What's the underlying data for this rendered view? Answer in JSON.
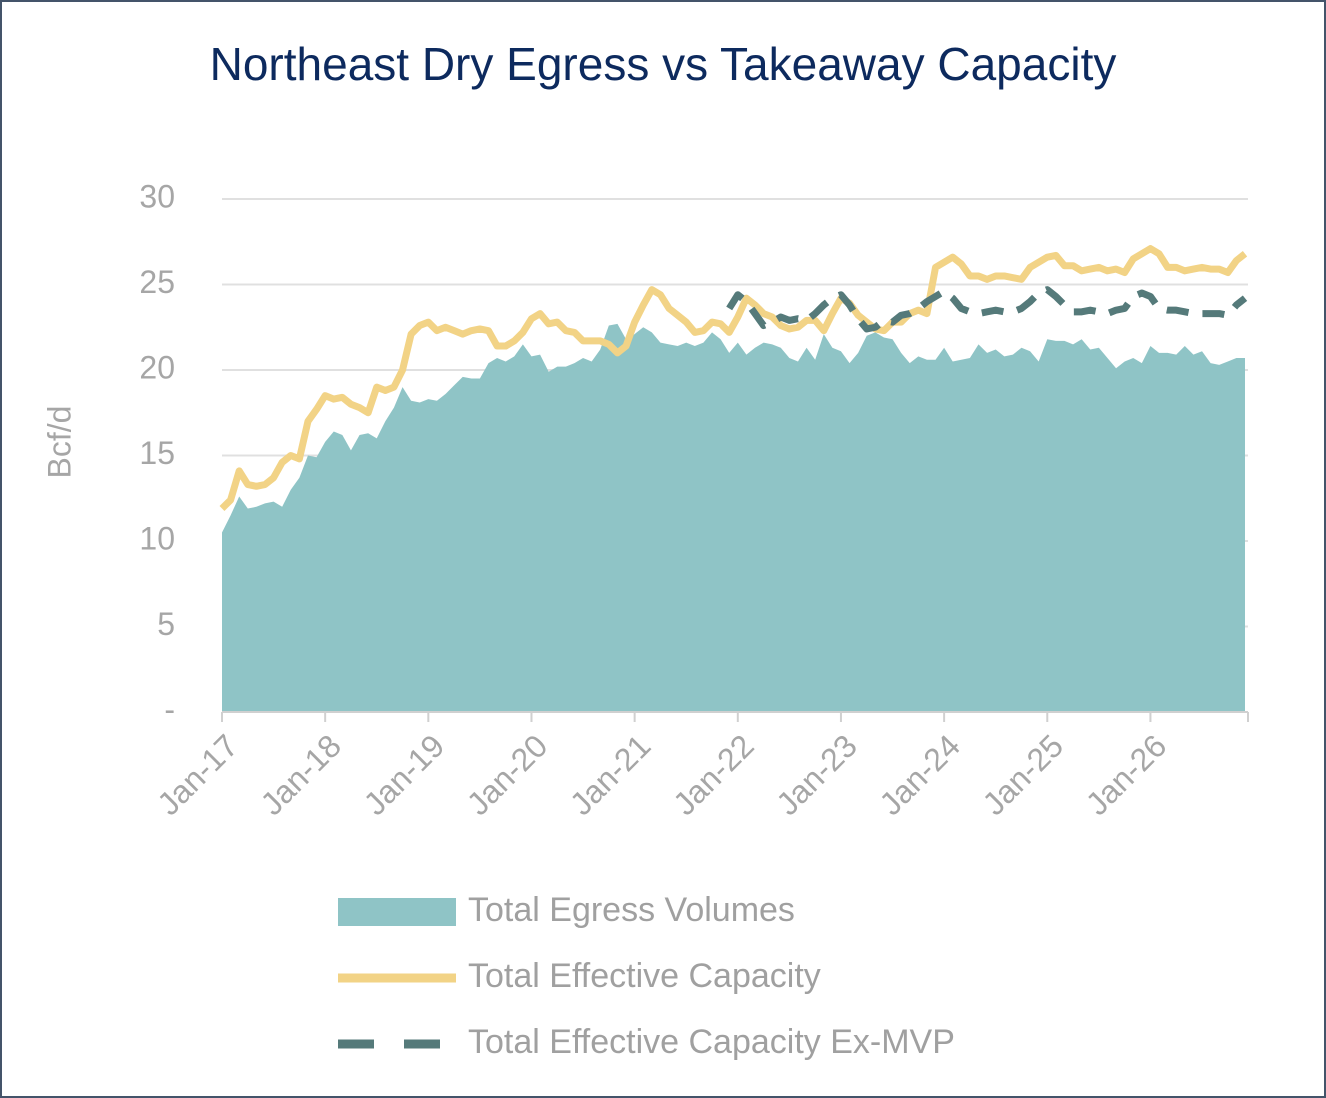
{
  "chart_data": {
    "type": "area-line",
    "title": "Northeast Dry Egress vs Takeaway Capacity",
    "y_label": "Bcf/d",
    "categories": [
      "Jan-17",
      null,
      null,
      null,
      null,
      null,
      null,
      null,
      null,
      null,
      null,
      null,
      "Jan-18",
      null,
      null,
      null,
      null,
      null,
      null,
      null,
      null,
      null,
      null,
      null,
      "Jan-19",
      null,
      null,
      null,
      null,
      null,
      null,
      null,
      null,
      null,
      null,
      null,
      "Jan-20",
      null,
      null,
      null,
      null,
      null,
      null,
      null,
      null,
      null,
      null,
      null,
      "Jan-21",
      null,
      null,
      null,
      null,
      null,
      null,
      null,
      null,
      null,
      null,
      null,
      "Jan-22",
      null,
      null,
      null,
      null,
      null,
      null,
      null,
      null,
      null,
      null,
      null,
      "Jan-23",
      null,
      null,
      null,
      null,
      null,
      null,
      null,
      null,
      null,
      null,
      null,
      "Jan-24",
      null,
      null,
      null,
      null,
      null,
      null,
      null,
      null,
      null,
      null,
      null,
      "Jan-25",
      null,
      null,
      null,
      null,
      null,
      null,
      null,
      null,
      null,
      null,
      null,
      "Jan-26",
      null,
      null,
      null,
      null,
      null,
      null,
      null,
      null,
      null,
      null,
      null
    ],
    "series": [
      {
        "name": "Total Egress Volumes",
        "color": "#8fc4c6",
        "style": "area",
        "values": [
          10.5,
          11.5,
          12.6,
          11.9,
          12.0,
          12.2,
          12.3,
          12.0,
          13.0,
          13.7,
          15.0,
          14.9,
          15.8,
          16.4,
          16.2,
          15.3,
          16.2,
          16.3,
          16.0,
          17.0,
          17.8,
          19.0,
          18.2,
          18.1,
          18.3,
          18.2,
          18.6,
          19.1,
          19.6,
          19.5,
          19.5,
          20.4,
          20.7,
          20.5,
          20.8,
          21.5,
          20.8,
          20.9,
          19.9,
          20.2,
          20.2,
          20.4,
          20.7,
          20.5,
          21.2,
          22.6,
          22.7,
          21.8,
          22.1,
          22.5,
          22.2,
          21.6,
          21.5,
          21.4,
          21.6,
          21.4,
          21.6,
          22.2,
          21.8,
          21.0,
          21.6,
          20.9,
          21.3,
          21.6,
          21.5,
          21.3,
          20.7,
          20.5,
          21.3,
          20.6,
          22.1,
          21.3,
          21.1,
          20.4,
          21.0,
          22.0,
          22.2,
          21.9,
          21.8,
          21.0,
          20.4,
          20.8,
          20.6,
          20.6,
          21.3,
          20.5,
          20.6,
          20.7,
          21.5,
          21.0,
          21.2,
          20.8,
          20.9,
          21.3,
          21.1,
          20.5,
          21.8,
          21.7,
          21.7,
          21.5,
          21.8,
          21.2,
          21.3,
          20.7,
          20.1,
          20.5,
          20.7,
          20.4,
          21.4,
          21.0,
          21.0,
          20.9,
          21.4,
          20.9,
          21.1,
          20.4,
          20.3,
          20.5,
          20.7,
          20.7
        ]
      },
      {
        "name": "Total Effective Capacity",
        "color": "#f2d386",
        "style": "solid",
        "values": [
          11.9,
          12.4,
          14.1,
          13.3,
          13.2,
          13.3,
          13.7,
          14.6,
          15.0,
          14.8,
          17.0,
          17.7,
          18.5,
          18.3,
          18.4,
          18.0,
          17.8,
          17.5,
          19.0,
          18.8,
          19.0,
          20.0,
          22.1,
          22.6,
          22.8,
          22.3,
          22.5,
          22.3,
          22.1,
          22.3,
          22.4,
          22.3,
          21.4,
          21.4,
          21.7,
          22.2,
          23.0,
          23.3,
          22.7,
          22.8,
          22.3,
          22.2,
          21.7,
          21.7,
          21.7,
          21.5,
          21.0,
          21.4,
          22.8,
          23.8,
          24.7,
          24.4,
          23.6,
          23.2,
          22.8,
          22.2,
          22.3,
          22.8,
          22.7,
          22.2,
          23.1,
          24.2,
          23.8,
          23.3,
          23.1,
          22.6,
          22.4,
          22.5,
          22.9,
          22.9,
          22.3,
          23.3,
          24.2,
          23.9,
          23.2,
          22.8,
          22.4,
          22.3,
          22.8,
          22.8,
          23.3,
          23.5,
          23.3,
          26.0,
          26.3,
          26.6,
          26.2,
          25.5,
          25.5,
          25.3,
          25.5,
          25.5,
          25.4,
          25.3,
          26.0,
          26.3,
          26.6,
          26.7,
          26.1,
          26.1,
          25.8,
          25.9,
          26.0,
          25.8,
          25.9,
          25.7,
          26.5,
          26.8,
          27.1,
          26.8,
          26.0,
          26.0,
          25.8,
          25.9,
          26.0,
          25.9,
          25.9,
          25.7,
          26.4,
          26.8
        ]
      },
      {
        "name": "Total Effective Capacity Ex-MVP",
        "color": "#557a7a",
        "style": "dashed",
        "values": [
          null,
          null,
          null,
          null,
          null,
          null,
          null,
          null,
          null,
          null,
          null,
          null,
          null,
          null,
          null,
          null,
          null,
          null,
          null,
          null,
          null,
          null,
          null,
          null,
          null,
          null,
          null,
          null,
          null,
          null,
          null,
          null,
          null,
          null,
          null,
          null,
          null,
          null,
          null,
          null,
          null,
          null,
          null,
          null,
          null,
          null,
          null,
          null,
          null,
          null,
          null,
          null,
          null,
          null,
          null,
          null,
          null,
          null,
          null,
          23.6,
          24.4,
          24.0,
          23.3,
          22.6,
          22.8,
          23.1,
          22.9,
          23.0,
          22.9,
          23.3,
          23.8,
          24.2,
          24.4,
          23.8,
          23.0,
          22.4,
          22.5,
          22.9,
          22.8,
          23.2,
          23.3,
          23.6,
          24.0,
          24.3,
          24.6,
          24.2,
          23.6,
          23.4,
          23.3,
          23.4,
          23.5,
          23.4,
          23.4,
          23.6,
          24.0,
          24.5,
          24.7,
          24.3,
          23.8,
          23.4,
          23.4,
          23.5,
          23.4,
          23.3,
          23.5,
          23.6,
          24.3,
          24.5,
          24.3,
          23.6,
          23.5,
          23.5,
          23.4,
          23.3,
          23.3,
          23.3,
          23.3,
          23.2,
          23.8,
          24.2
        ]
      }
    ],
    "ylim": [
      0,
      30
    ],
    "yticks": [
      {
        "value": 0,
        "label": "-"
      },
      5,
      10,
      15,
      20,
      25,
      30
    ],
    "grid": true
  }
}
